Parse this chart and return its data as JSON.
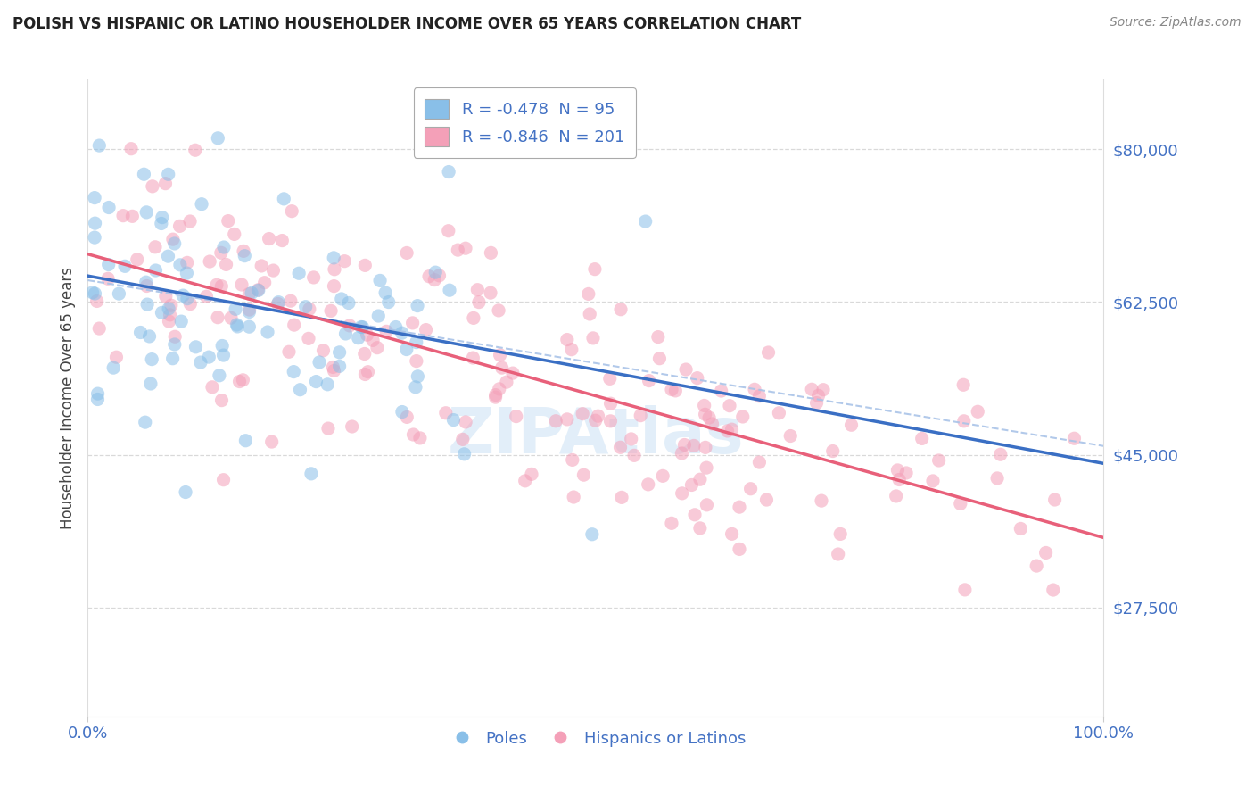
{
  "title": "POLISH VS HISPANIC OR LATINO HOUSEHOLDER INCOME OVER 65 YEARS CORRELATION CHART",
  "source": "Source: ZipAtlas.com",
  "ylabel": "Householder Income Over 65 years",
  "xlim": [
    0.0,
    100.0
  ],
  "ylim": [
    15000,
    88000
  ],
  "yticks": [
    27500,
    45000,
    62500,
    80000
  ],
  "ytick_labels": [
    "$27,500",
    "$45,000",
    "$62,500",
    "$80,000"
  ],
  "xtick_labels": [
    "0.0%",
    "100.0%"
  ],
  "blue_R": -0.478,
  "blue_N": 95,
  "pink_R": -0.846,
  "pink_N": 201,
  "blue_color": "#89bfe8",
  "pink_color": "#f4a0b8",
  "blue_line_color": "#3a6fc4",
  "pink_line_color": "#e8607a",
  "dashed_line_color": "#aac4e8",
  "axis_color": "#4472c4",
  "legend_label_blue": "Poles",
  "legend_label_pink": "Hispanics or Latinos",
  "background_color": "#ffffff",
  "grid_color": "#d0d0d0",
  "blue_intercept": 65500,
  "blue_slope": -215,
  "pink_intercept": 68000,
  "pink_slope": -325,
  "dashed_intercept": 65000,
  "dashed_slope": -190,
  "watermark": "ZIPAtlas"
}
